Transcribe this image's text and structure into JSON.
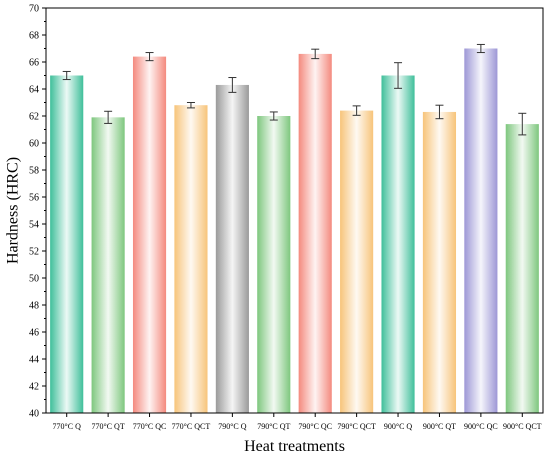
{
  "chart_data": {
    "type": "bar",
    "xlabel": "Heat treatments",
    "ylabel": "Hardness (HRC)",
    "ylim": [
      40,
      70
    ],
    "yticks": [
      40,
      42,
      44,
      46,
      48,
      50,
      52,
      54,
      56,
      58,
      60,
      62,
      64,
      66,
      68,
      70
    ],
    "categories": [
      "770°C Q",
      "770°C QT",
      "770°C QC",
      "770°C QCT",
      "790°C Q",
      "790°C QT",
      "790°C QC",
      "790°C QCT",
      "900°C Q",
      "900°C QT",
      "900°C QC",
      "900°C QCT"
    ],
    "values": [
      65.0,
      61.9,
      66.4,
      62.8,
      64.3,
      62.0,
      66.6,
      62.4,
      65.0,
      62.3,
      67.0,
      61.4
    ],
    "errors": [
      0.3,
      0.45,
      0.3,
      0.2,
      0.55,
      0.3,
      0.35,
      0.35,
      0.95,
      0.5,
      0.3,
      0.8
    ],
    "colors": [
      "#3fbf9a",
      "#7ec77e",
      "#f48a7e",
      "#f7c47a",
      "#9a9a9a",
      "#7ec77e",
      "#f48a7e",
      "#f7c47a",
      "#3fbf9a",
      "#f7c47a",
      "#9d97d6",
      "#7ec77e"
    ],
    "grid": false,
    "legend": "none"
  }
}
